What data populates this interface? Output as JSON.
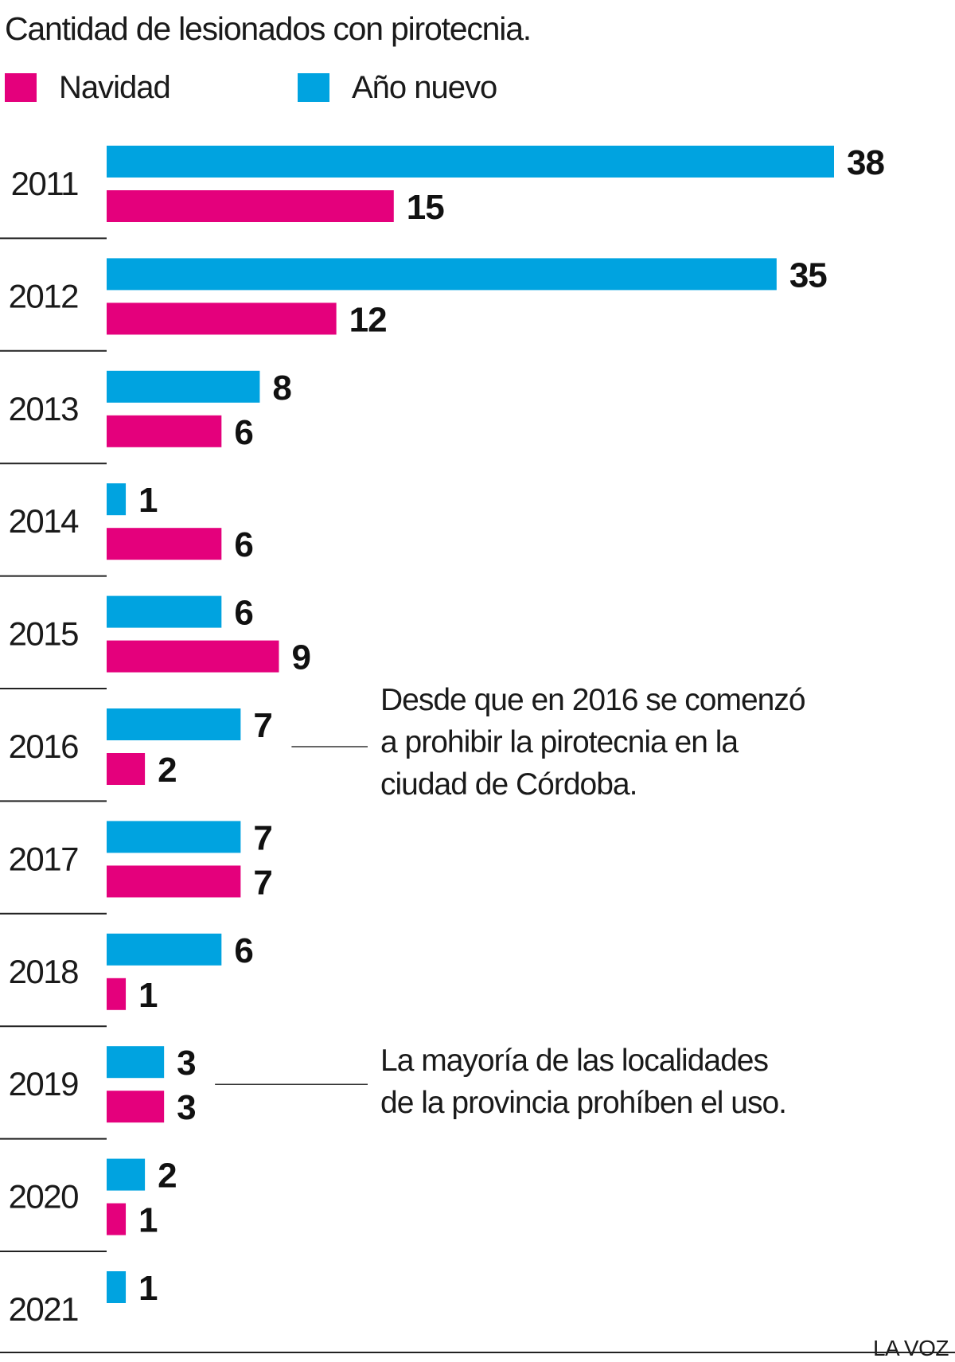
{
  "chart_data": {
    "type": "bar",
    "orientation": "horizontal",
    "title": "Cantidad de lesionados con pirotecnia.",
    "categories": [
      "2011",
      "2012",
      "2013",
      "2014",
      "2015",
      "2016",
      "2017",
      "2018",
      "2019",
      "2020",
      "2021"
    ],
    "series": [
      {
        "name": "Año nuevo",
        "color": "#00a3e0",
        "values": [
          38,
          35,
          8,
          1,
          6,
          7,
          7,
          6,
          3,
          2,
          1
        ]
      },
      {
        "name": "Navidad",
        "color": "#e4007c",
        "values": [
          15,
          12,
          6,
          6,
          9,
          2,
          7,
          1,
          3,
          1,
          null
        ]
      }
    ],
    "legend": {
      "placement": "top-left",
      "order": [
        "Navidad",
        "Año nuevo"
      ]
    },
    "annotations": [
      {
        "category": "2016",
        "text": "Desde que en 2016 se comenzó\na prohibir la pirotecnia en la\nciudad de Córdoba."
      },
      {
        "category": "2019",
        "text": "La mayoría de las localidades\nde la provincia prohíben el uso."
      }
    ],
    "source": "LA VOZ"
  }
}
